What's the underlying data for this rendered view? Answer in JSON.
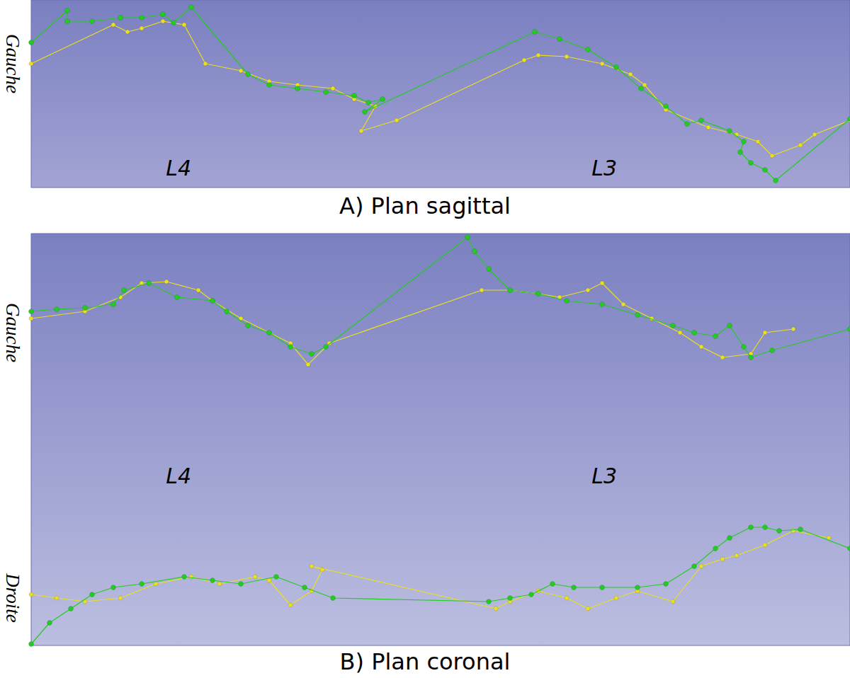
{
  "chart_data": [
    {
      "type": "line",
      "title": "A) Plan sagittal",
      "side_labels": [
        "Gauche"
      ],
      "level_labels": [
        "L4",
        "L3"
      ],
      "xlim": [
        0,
        1156
      ],
      "ylim": [
        0,
        265
      ],
      "grid": false,
      "tick_labels": false,
      "series": [
        {
          "color": "#22cc22",
          "marker": "circle",
          "x": [
            0,
            51,
            51,
            86,
            126,
            156,
            186,
            201,
            226,
            306,
            336,
            376,
            416,
            456,
            476,
            496,
            471,
            711,
            746,
            786,
            826,
            861,
            896,
            926,
            946,
            986,
            1006,
            1001,
            1016,
            1036,
            1051,
            1156
          ],
          "values": [
            205,
            250,
            235,
            235,
            240,
            240,
            245,
            233,
            255,
            160,
            145,
            140,
            135,
            130,
            120,
            125,
            107,
            220,
            210,
            195,
            170,
            140,
            115,
            90,
            95,
            80,
            65,
            50,
            35,
            25,
            10,
            97
          ]
        },
        {
          "color": "#e8e020",
          "marker": "circle",
          "x": [
            0,
            116,
            136,
            156,
            186,
            216,
            246,
            296,
            336,
            376,
            426,
            456,
            486,
            466,
            516,
            696,
            716,
            756,
            806,
            846,
            866,
            896,
            956,
            996,
            1026,
            1046,
            1086,
            1106,
            1156
          ],
          "values": [
            175,
            230,
            220,
            225,
            235,
            230,
            175,
            165,
            150,
            145,
            140,
            125,
            115,
            80,
            95,
            180,
            187,
            185,
            175,
            160,
            145,
            110,
            85,
            75,
            65,
            45,
            60,
            75,
            95
          ]
        }
      ]
    },
    {
      "type": "line",
      "title": "B) Plan coronal",
      "side_labels": [
        "Gauche",
        "Droite"
      ],
      "level_labels": [
        "L4",
        "L3"
      ],
      "xlim": [
        0,
        1156
      ],
      "ylim": [
        0,
        582
      ],
      "grid": false,
      "tick_labels": false,
      "series": [
        {
          "color": "#22cc22",
          "marker": "circle",
          "x": [
            0,
            36,
            76,
            116,
            131,
            166,
            206,
            256,
            276,
            306,
            336,
            366,
            396,
            416,
            616,
            626,
            646,
            676,
            716,
            756,
            806,
            856,
            906,
            936,
            966,
            986,
            1006,
            1016,
            1046,
            1156
          ],
          "values": [
            472,
            475,
            477,
            482,
            502,
            512,
            492,
            487,
            472,
            452,
            442,
            422,
            412,
            422,
            577,
            557,
            532,
            502,
            497,
            487,
            482,
            467,
            452,
            442,
            437,
            452,
            422,
            407,
            417,
            447
          ]
        },
        {
          "color": "#e8e020",
          "marker": "circle",
          "x": [
            0,
            76,
            126,
            156,
            191,
            236,
            256,
            296,
            336,
            366,
            391,
            421,
            636,
            676,
            716,
            746,
            786,
            806,
            836,
            876,
            916,
            946,
            976,
            1016,
            1036,
            1076
          ],
          "values": [
            462,
            472,
            492,
            512,
            514,
            502,
            487,
            462,
            442,
            427,
            397,
            427,
            502,
            502,
            497,
            492,
            502,
            512,
            482,
            462,
            442,
            422,
            407,
            412,
            442,
            447
          ]
        },
        {
          "color": "#22cc22",
          "marker": "circle",
          "x": [
            0,
            26,
            56,
            86,
            116,
            156,
            216,
            256,
            296,
            346,
            386,
            426,
            646,
            676,
            706,
            736,
            766,
            806,
            856,
            896,
            936,
            966,
            986,
            1016,
            1036,
            1056,
            1086,
            1156
          ],
          "values": [
            2,
            32,
            52,
            72,
            82,
            87,
            97,
            92,
            87,
            97,
            82,
            67,
            62,
            67,
            72,
            87,
            82,
            82,
            82,
            87,
            112,
            137,
            152,
            167,
            167,
            162,
            164,
            137
          ]
        },
        {
          "color": "#e8e020",
          "marker": "circle",
          "x": [
            0,
            36,
            76,
            126,
            176,
            226,
            266,
            316,
            336,
            366,
            396,
            411,
            396,
            656,
            676,
            716,
            756,
            786,
            826,
            856,
            906,
            946,
            976,
            996,
            1036,
            1076,
            1126
          ],
          "values": [
            72,
            67,
            62,
            67,
            87,
            97,
            87,
            97,
            92,
            57,
            77,
            107,
            112,
            52,
            62,
            77,
            67,
            52,
            67,
            77,
            62,
            112,
            122,
            127,
            142,
            162,
            152
          ]
        }
      ]
    }
  ]
}
